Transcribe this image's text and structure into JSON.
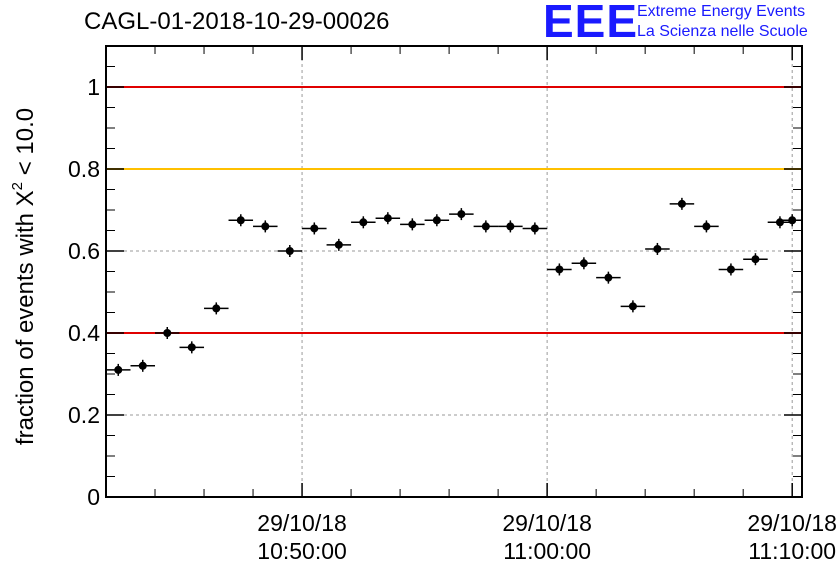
{
  "title": "CAGL-01-2018-10-29-00026",
  "logo": {
    "mark": "EEE",
    "line1": "Extreme Energy Events",
    "line2": "La Scienza nelle Scuole",
    "color": "#1a1aff"
  },
  "chart_data": {
    "type": "scatter",
    "title": "CAGL-01-2018-10-29-00026",
    "ylabel_prefix": "fraction of events with X",
    "ylabel_sup": "2",
    "ylabel_suffix": " < 10.0",
    "xlabel": "",
    "ylim": [
      0,
      1.1
    ],
    "xlim": [
      "10:42:00",
      "11:10:24"
    ],
    "yticks": [
      "0",
      "0.2",
      "0.4",
      "0.6",
      "0.8",
      "1"
    ],
    "xticks": [
      {
        "date": "29/10/18",
        "time": "10:50:00"
      },
      {
        "date": "29/10/18",
        "time": "11:00:00"
      },
      {
        "date": "29/10/18",
        "time": "11:10:00"
      }
    ],
    "grid": true,
    "bin_width_minutes": 1,
    "reference_lines": [
      {
        "y": 1.0,
        "color": "#e00000"
      },
      {
        "y": 0.8,
        "color": "#ffc000"
      },
      {
        "y": 0.4,
        "color": "#e00000"
      }
    ],
    "points": [
      {
        "x": "10:42:30",
        "y": 0.31
      },
      {
        "x": "10:43:30",
        "y": 0.32
      },
      {
        "x": "10:44:30",
        "y": 0.4
      },
      {
        "x": "10:45:30",
        "y": 0.365
      },
      {
        "x": "10:46:30",
        "y": 0.46
      },
      {
        "x": "10:47:30",
        "y": 0.675
      },
      {
        "x": "10:48:30",
        "y": 0.66
      },
      {
        "x": "10:49:30",
        "y": 0.6
      },
      {
        "x": "10:50:30",
        "y": 0.655
      },
      {
        "x": "10:51:30",
        "y": 0.615
      },
      {
        "x": "10:52:30",
        "y": 0.67
      },
      {
        "x": "10:53:30",
        "y": 0.68
      },
      {
        "x": "10:54:30",
        "y": 0.665
      },
      {
        "x": "10:55:30",
        "y": 0.675
      },
      {
        "x": "10:56:30",
        "y": 0.69
      },
      {
        "x": "10:57:30",
        "y": 0.66
      },
      {
        "x": "10:58:30",
        "y": 0.66
      },
      {
        "x": "10:59:30",
        "y": 0.655
      },
      {
        "x": "11:00:30",
        "y": 0.555
      },
      {
        "x": "11:01:30",
        "y": 0.57
      },
      {
        "x": "11:02:30",
        "y": 0.535
      },
      {
        "x": "11:03:30",
        "y": 0.465
      },
      {
        "x": "11:04:30",
        "y": 0.605
      },
      {
        "x": "11:05:30",
        "y": 0.715
      },
      {
        "x": "11:06:30",
        "y": 0.66
      },
      {
        "x": "11:07:30",
        "y": 0.555
      },
      {
        "x": "11:08:30",
        "y": 0.58
      },
      {
        "x": "11:09:30",
        "y": 0.67
      },
      {
        "x": "11:10:00",
        "y": 0.675
      }
    ]
  }
}
